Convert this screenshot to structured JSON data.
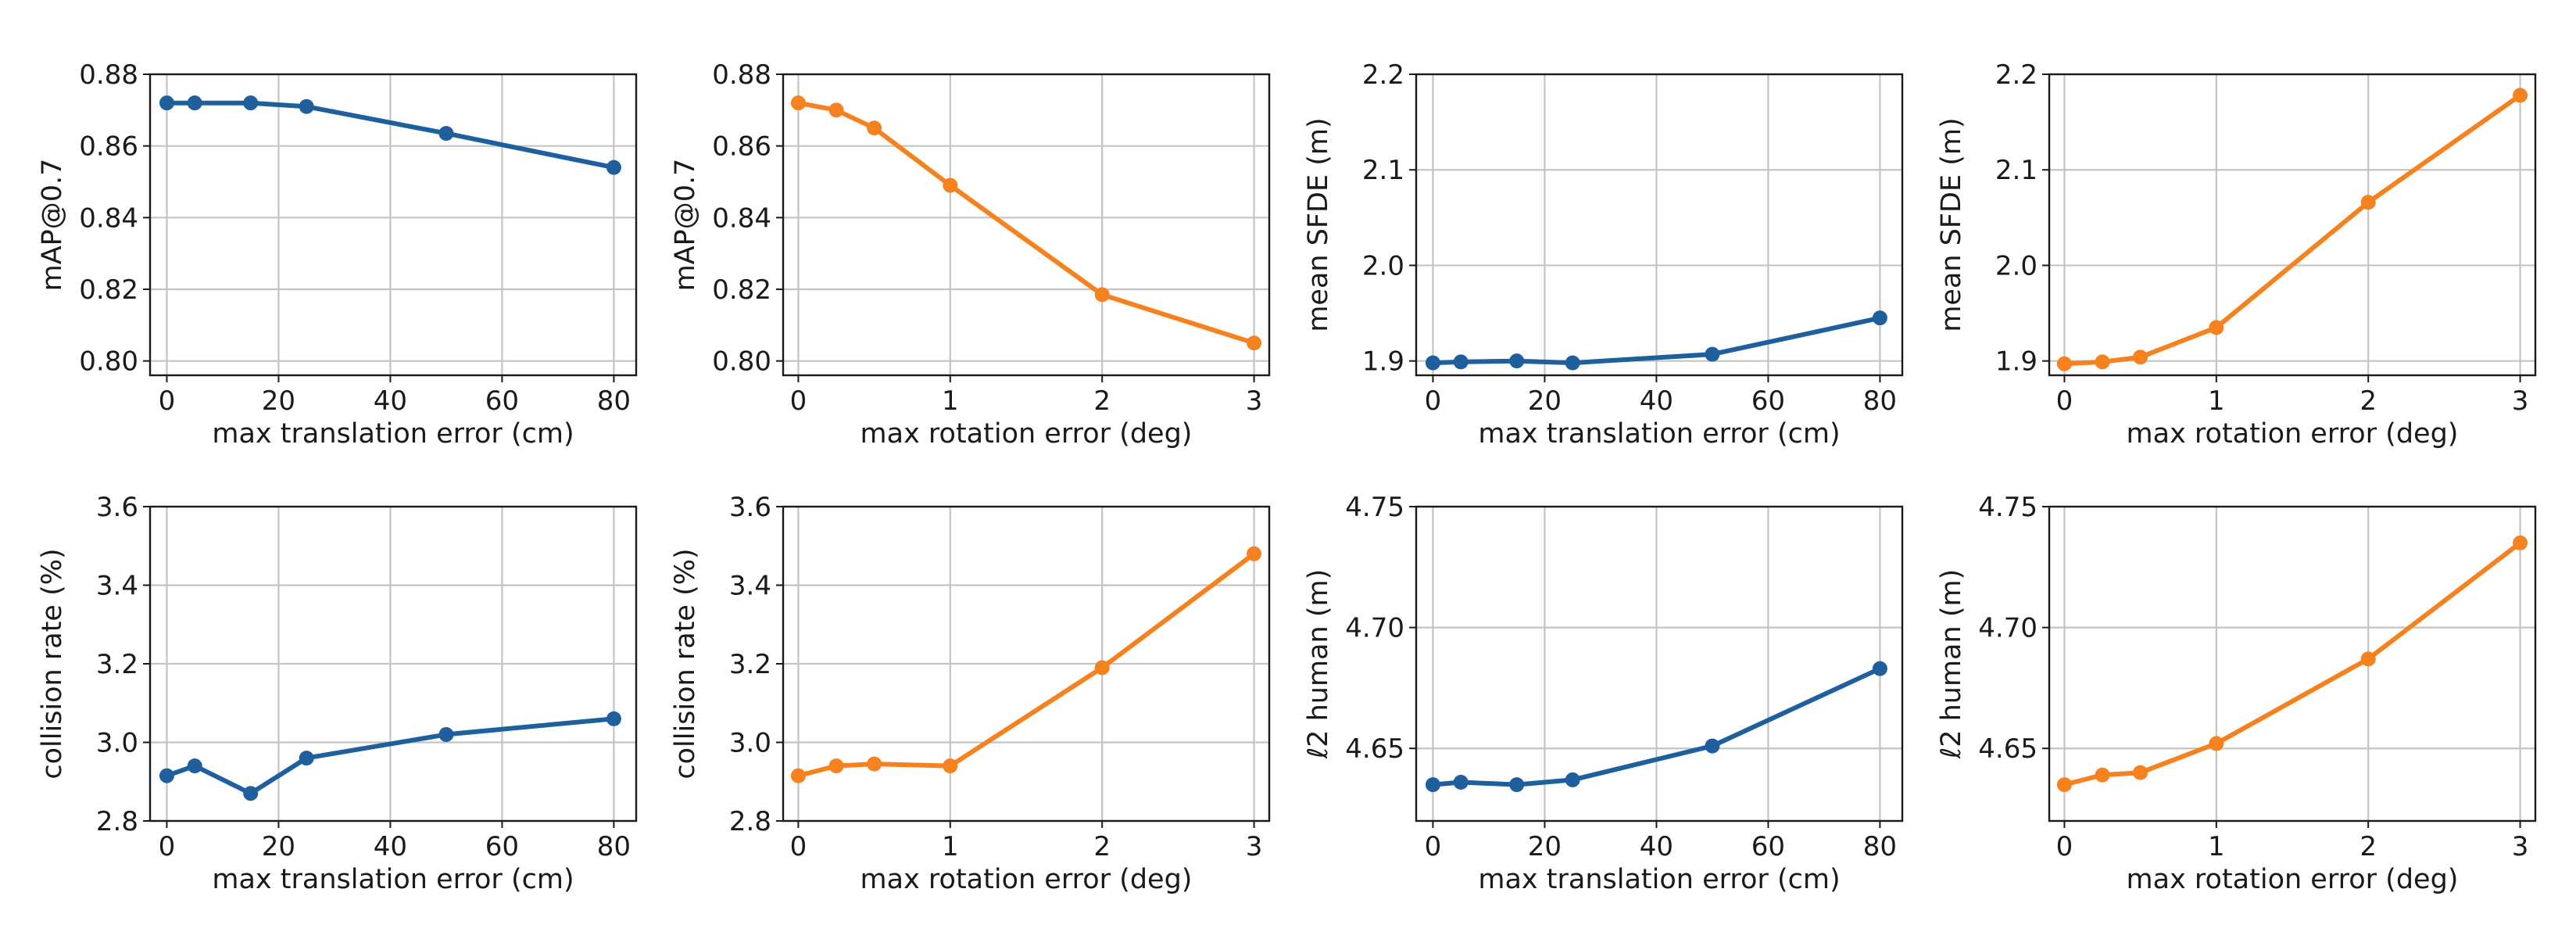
{
  "colors": {
    "translation": "#1f5f9e",
    "rotation": "#f5821f"
  },
  "chart_data": [
    {
      "type": "line",
      "xlabel": "max translation error (cm)",
      "ylabel": "mAP@0.7",
      "x": [
        0,
        5,
        15,
        25,
        50,
        80
      ],
      "y": [
        0.872,
        0.872,
        0.872,
        0.871,
        0.8635,
        0.854
      ],
      "xlim": [
        -3,
        84
      ],
      "ylim": [
        0.796,
        0.88
      ],
      "xticks": [
        0,
        20,
        40,
        60,
        80
      ],
      "xtick_labels": [
        "0",
        "20",
        "40",
        "60",
        "80"
      ],
      "yticks": [
        0.8,
        0.82,
        0.84,
        0.86,
        0.88
      ],
      "ytick_labels": [
        "0.80",
        "0.82",
        "0.84",
        "0.86",
        "0.88"
      ],
      "color": "#1f5f9e",
      "grid": true
    },
    {
      "type": "line",
      "xlabel": "max rotation error (deg)",
      "ylabel": "mAP@0.7",
      "x": [
        0,
        0.25,
        0.5,
        1,
        2,
        3
      ],
      "y": [
        0.872,
        0.87,
        0.865,
        0.849,
        0.8185,
        0.805
      ],
      "xlim": [
        -0.1,
        3.1
      ],
      "ylim": [
        0.796,
        0.88
      ],
      "xticks": [
        0,
        1,
        2,
        3
      ],
      "xtick_labels": [
        "0",
        "1",
        "2",
        "3"
      ],
      "yticks": [
        0.8,
        0.82,
        0.84,
        0.86,
        0.88
      ],
      "ytick_labels": [
        "0.80",
        "0.82",
        "0.84",
        "0.86",
        "0.88"
      ],
      "color": "#f5821f",
      "grid": true
    },
    {
      "type": "line",
      "xlabel": "max translation error (cm)",
      "ylabel": "mean SFDE (m)",
      "x": [
        0,
        5,
        15,
        25,
        50,
        80
      ],
      "y": [
        1.898,
        1.899,
        1.9,
        1.898,
        1.907,
        1.945
      ],
      "xlim": [
        -3,
        84
      ],
      "ylim": [
        1.885,
        2.2
      ],
      "xticks": [
        0,
        20,
        40,
        60,
        80
      ],
      "xtick_labels": [
        "0",
        "20",
        "40",
        "60",
        "80"
      ],
      "yticks": [
        1.9,
        2.0,
        2.1,
        2.2
      ],
      "ytick_labels": [
        "1.9",
        "2.0",
        "2.1",
        "2.2"
      ],
      "color": "#1f5f9e",
      "grid": true
    },
    {
      "type": "line",
      "xlabel": "max rotation error (deg)",
      "ylabel": "mean SFDE (m)",
      "x": [
        0,
        0.25,
        0.5,
        1,
        2,
        3
      ],
      "y": [
        1.897,
        1.899,
        1.904,
        1.935,
        2.066,
        2.178
      ],
      "xlim": [
        -0.1,
        3.1
      ],
      "ylim": [
        1.885,
        2.2
      ],
      "xticks": [
        0,
        1,
        2,
        3
      ],
      "xtick_labels": [
        "0",
        "1",
        "2",
        "3"
      ],
      "yticks": [
        1.9,
        2.0,
        2.1,
        2.2
      ],
      "ytick_labels": [
        "1.9",
        "2.0",
        "2.1",
        "2.2"
      ],
      "color": "#f5821f",
      "grid": true
    },
    {
      "type": "line",
      "xlabel": "max translation error (cm)",
      "ylabel": "collision rate (%)",
      "x": [
        0,
        5,
        15,
        25,
        50,
        80
      ],
      "y": [
        2.915,
        2.94,
        2.87,
        2.96,
        3.02,
        3.06
      ],
      "xlim": [
        -3,
        84
      ],
      "ylim": [
        2.8,
        3.6
      ],
      "xticks": [
        0,
        20,
        40,
        60,
        80
      ],
      "xtick_labels": [
        "0",
        "20",
        "40",
        "60",
        "80"
      ],
      "yticks": [
        2.8,
        3.0,
        3.2,
        3.4,
        3.6
      ],
      "ytick_labels": [
        "2.8",
        "3.0",
        "3.2",
        "3.4",
        "3.6"
      ],
      "color": "#1f5f9e",
      "grid": true
    },
    {
      "type": "line",
      "xlabel": "max rotation error (deg)",
      "ylabel": "collision rate (%)",
      "x": [
        0,
        0.25,
        0.5,
        1,
        2,
        3
      ],
      "y": [
        2.915,
        2.94,
        2.945,
        2.94,
        3.19,
        3.48
      ],
      "xlim": [
        -0.1,
        3.1
      ],
      "ylim": [
        2.8,
        3.6
      ],
      "xticks": [
        0,
        1,
        2,
        3
      ],
      "xtick_labels": [
        "0",
        "1",
        "2",
        "3"
      ],
      "yticks": [
        2.8,
        3.0,
        3.2,
        3.4,
        3.6
      ],
      "ytick_labels": [
        "2.8",
        "3.0",
        "3.2",
        "3.4",
        "3.6"
      ],
      "color": "#f5821f",
      "grid": true
    },
    {
      "type": "line",
      "xlabel": "max translation error (cm)",
      "ylabel": "ℓ2 human (m)",
      "x": [
        0,
        5,
        15,
        25,
        50,
        80
      ],
      "y": [
        4.635,
        4.636,
        4.635,
        4.637,
        4.651,
        4.683
      ],
      "xlim": [
        -3,
        84
      ],
      "ylim": [
        4.62,
        4.75
      ],
      "xticks": [
        0,
        20,
        40,
        60,
        80
      ],
      "xtick_labels": [
        "0",
        "20",
        "40",
        "60",
        "80"
      ],
      "yticks": [
        4.65,
        4.7,
        4.75
      ],
      "ytick_labels": [
        "4.65",
        "4.70",
        "4.75"
      ],
      "color": "#1f5f9e",
      "grid": true
    },
    {
      "type": "line",
      "xlabel": "max rotation error (deg)",
      "ylabel": "ℓ2 human (m)",
      "x": [
        0,
        0.25,
        0.5,
        1,
        2,
        3
      ],
      "y": [
        4.635,
        4.639,
        4.64,
        4.652,
        4.687,
        4.735
      ],
      "xlim": [
        -0.1,
        3.1
      ],
      "ylim": [
        4.62,
        4.75
      ],
      "xticks": [
        0,
        1,
        2,
        3
      ],
      "xtick_labels": [
        "0",
        "1",
        "2",
        "3"
      ],
      "yticks": [
        4.65,
        4.7,
        4.75
      ],
      "ytick_labels": [
        "4.65",
        "4.70",
        "4.75"
      ],
      "color": "#f5821f",
      "grid": true
    }
  ]
}
